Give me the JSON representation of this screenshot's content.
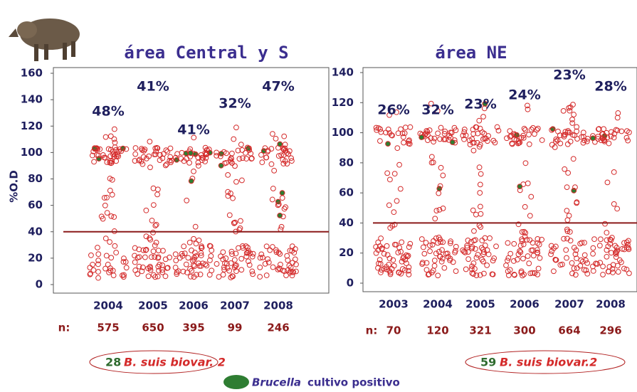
{
  "chart_data": [
    {
      "type": "strip",
      "title": "área Central y S",
      "y_label": "%O.D",
      "n_label": "n:",
      "categories": [
        "2004",
        "2005",
        "2006",
        "2007",
        "2008"
      ],
      "values": [
        48,
        41,
        41,
        32,
        47
      ],
      "value_labels": [
        "48%",
        "41%",
        "41%",
        "32%",
        "47%"
      ],
      "n": [
        575,
        650,
        395,
        99,
        246
      ],
      "threshold": 40,
      "ylim": [
        0,
        160
      ],
      "yticks": [
        0,
        20,
        40,
        60,
        80,
        100,
        120,
        140,
        160
      ],
      "note_count": "28",
      "note_text": "B. suis biovar. 2"
    },
    {
      "type": "strip",
      "title": "área NE",
      "n_label": "n:",
      "categories": [
        "2003",
        "2004",
        "2005",
        "2006",
        "2007",
        "2008"
      ],
      "values": [
        26,
        32,
        23,
        24,
        23,
        28
      ],
      "value_labels": [
        "26%",
        "32%",
        "23%",
        "24%",
        "23%",
        "28%"
      ],
      "n": [
        70,
        120,
        321,
        300,
        664,
        296
      ],
      "threshold": 40,
      "ylim": [
        0,
        140
      ],
      "yticks": [
        0,
        20,
        40,
        60,
        80,
        100,
        120,
        140
      ],
      "note_count": "59",
      "note_text": "B. suis biovar.2"
    }
  ],
  "legend": {
    "italic": "Brucella",
    "text": "cultivo positivo"
  }
}
